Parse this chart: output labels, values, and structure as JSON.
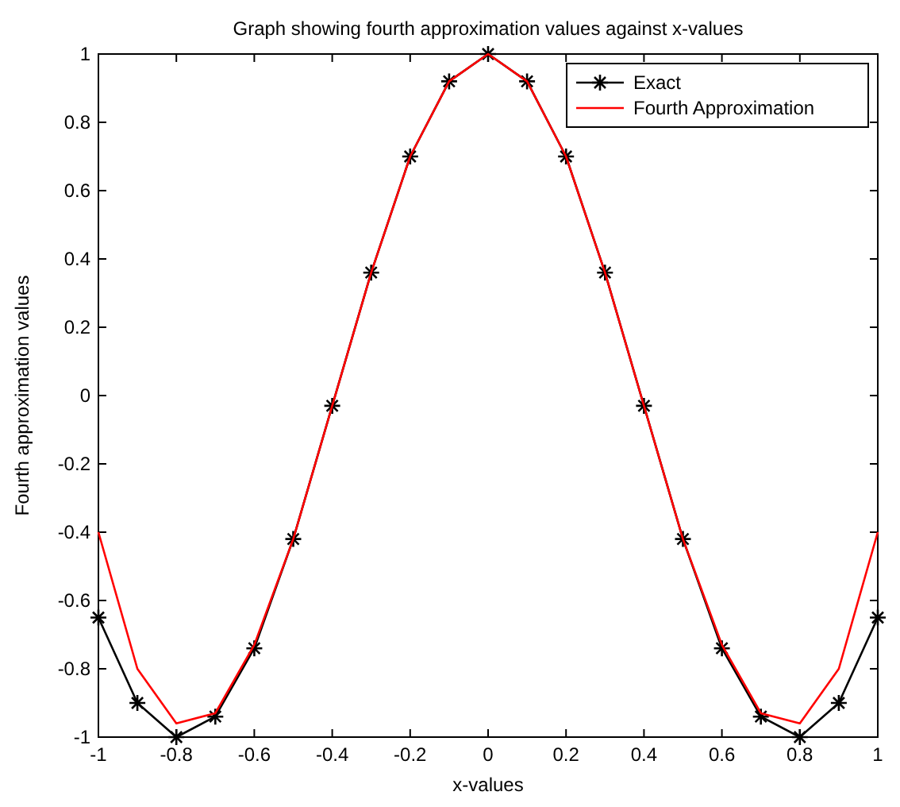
{
  "chart_data": {
    "type": "line",
    "title": "Graph showing fourth approximation values against x-values",
    "xlabel": "x-values",
    "ylabel": "Fourth approximation values",
    "x": [
      -1,
      -0.9,
      -0.8,
      -0.7,
      -0.6,
      -0.5,
      -0.4,
      -0.3,
      -0.2,
      -0.1,
      0,
      0.1,
      0.2,
      0.3,
      0.4,
      0.5,
      0.6,
      0.7,
      0.8,
      0.9,
      1
    ],
    "series": [
      {
        "name": "Exact",
        "color": "#000000",
        "marker": "cross",
        "values": [
          -0.65,
          -0.9,
          -1,
          -0.94,
          -0.74,
          -0.42,
          -0.03,
          0.36,
          0.7,
          0.92,
          1,
          0.92,
          0.7,
          0.36,
          -0.03,
          -0.42,
          -0.74,
          -0.94,
          -1,
          -0.9,
          -0.65
        ]
      },
      {
        "name": "Fourth Approximation",
        "color": "#ff0000",
        "marker": "none",
        "values": [
          -0.4,
          -0.8,
          -0.96,
          -0.93,
          -0.73,
          -0.42,
          -0.03,
          0.36,
          0.7,
          0.92,
          1,
          0.92,
          0.7,
          0.36,
          -0.03,
          -0.42,
          -0.73,
          -0.93,
          -0.96,
          -0.8,
          -0.4
        ]
      }
    ],
    "xlim": [
      -1,
      1
    ],
    "xticks": [
      -1,
      -0.8,
      -0.6,
      -0.4,
      -0.2,
      0,
      0.2,
      0.4,
      0.6,
      0.8,
      1
    ],
    "ylim": [
      -1,
      1
    ],
    "yticks": [
      -1,
      -0.8,
      -0.6,
      -0.4,
      -0.2,
      0,
      0.2,
      0.4,
      0.6,
      0.8,
      1
    ],
    "legend": "top right",
    "line_style": "solid"
  }
}
